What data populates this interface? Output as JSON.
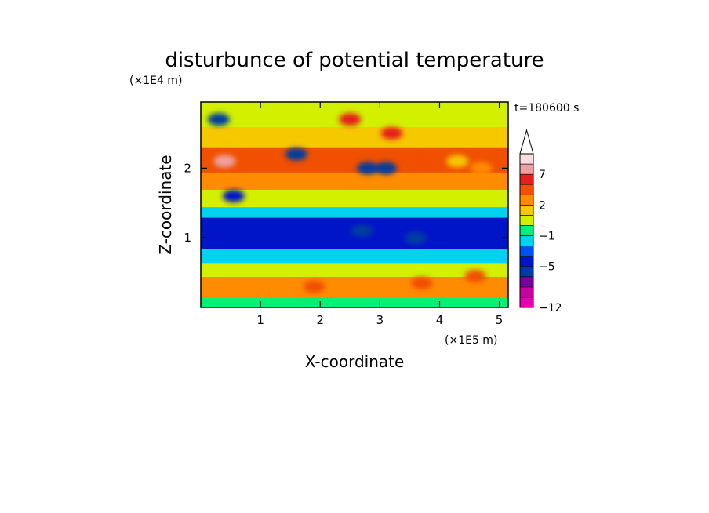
{
  "chart_data": {
    "type": "heatmap",
    "title": "disturbunce of potential temperature",
    "time_label": "t=180600 s",
    "xlabel": "X-coordinate",
    "ylabel": "Z-coordinate",
    "x_scale_label": "(×1E5 m)",
    "y_scale_label": "(×1E4 m)",
    "xlim": [
      0,
      5.15
    ],
    "ylim": [
      0,
      2.95
    ],
    "x_ticks": [
      1,
      2,
      3,
      4,
      5
    ],
    "y_ticks": [
      1,
      2
    ],
    "x_tick_labels": [
      "1",
      "2",
      "3",
      "4",
      "5"
    ],
    "y_tick_labels": [
      "1",
      "2"
    ],
    "colorbar": {
      "levels": [
        -12,
        -11,
        -9,
        -7,
        -5,
        -4,
        -2,
        -1,
        0,
        1,
        2,
        4,
        5,
        7,
        8,
        9
      ],
      "tick_values": [
        7,
        2,
        -1,
        -5,
        -12
      ],
      "tick_labels": [
        "7",
        "2",
        "−1",
        "−5",
        "−12"
      ],
      "colors": [
        "#e600b4",
        "#c800a0",
        "#7800a0",
        "#003ca0",
        "#0014c8",
        "#0050f0",
        "#00d2f0",
        "#00f078",
        "#d2f000",
        "#f5c800",
        "#ff8c00",
        "#f05000",
        "#e61e1e",
        "#f0a0a0",
        "#fadcdc"
      ],
      "extend": "max"
    },
    "bands": [
      {
        "z_range": [
          0.0,
          0.15
        ],
        "value": -1
      },
      {
        "z_range": [
          0.15,
          0.45
        ],
        "value": 2
      },
      {
        "z_range": [
          0.45,
          0.65
        ],
        "value": 0
      },
      {
        "z_range": [
          0.65,
          0.85
        ],
        "value": -2
      },
      {
        "z_range": [
          0.85,
          1.3
        ],
        "value": -5
      },
      {
        "z_range": [
          1.3,
          1.45
        ],
        "value": -2
      },
      {
        "z_range": [
          1.45,
          1.7
        ],
        "value": 0
      },
      {
        "z_range": [
          1.7,
          1.95
        ],
        "value": 2
      },
      {
        "z_range": [
          1.95,
          2.3
        ],
        "value": 4
      },
      {
        "z_range": [
          2.3,
          2.6
        ],
        "value": 1
      },
      {
        "z_range": [
          2.6,
          2.95
        ],
        "value": 0
      }
    ],
    "features": [
      {
        "x": 0.3,
        "z": 2.7,
        "value": -7
      },
      {
        "x": 0.4,
        "z": 2.1,
        "value": 7
      },
      {
        "x": 0.55,
        "z": 1.6,
        "value": -5
      },
      {
        "x": 1.6,
        "z": 2.2,
        "value": -7
      },
      {
        "x": 2.5,
        "z": 2.7,
        "value": 5
      },
      {
        "x": 2.8,
        "z": 2.0,
        "value": -7
      },
      {
        "x": 3.1,
        "z": 2.0,
        "value": -7
      },
      {
        "x": 3.2,
        "z": 2.5,
        "value": 5
      },
      {
        "x": 3.7,
        "z": 2.1,
        "value": 4
      },
      {
        "x": 4.3,
        "z": 2.1,
        "value": 1
      },
      {
        "x": 4.7,
        "z": 2.0,
        "value": 2
      },
      {
        "x": 2.7,
        "z": 1.1,
        "value": -7
      },
      {
        "x": 3.6,
        "z": 1.0,
        "value": -7
      },
      {
        "x": 1.9,
        "z": 0.3,
        "value": 4
      },
      {
        "x": 3.7,
        "z": 0.35,
        "value": 4
      },
      {
        "x": 4.6,
        "z": 0.45,
        "value": 4
      }
    ]
  }
}
